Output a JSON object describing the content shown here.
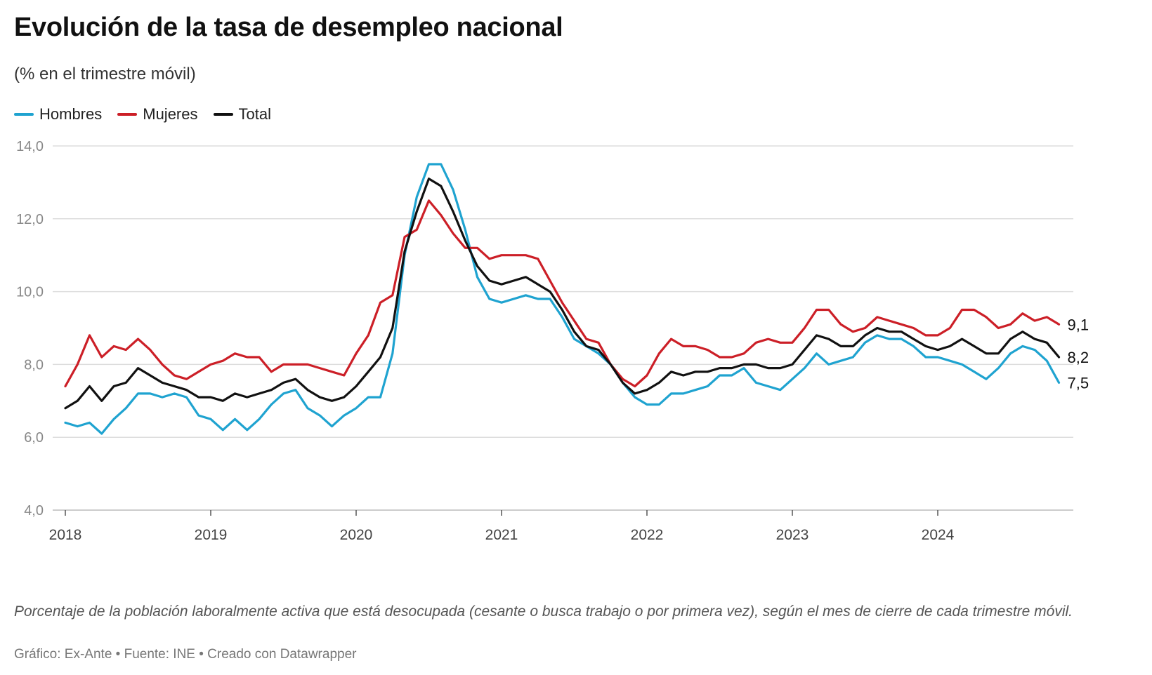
{
  "title": "Evolución de la tasa de desempleo nacional",
  "subtitle": "(% en el trimestre móvil)",
  "note": "Porcentaje de la población laboralmente activa que está desocupada (cesante o busca trabajo o por primera vez), según el mes de cierre de cada trimestre móvil.",
  "footer": "Gráfico: Ex-Ante • Fuente: INE • Creado con Datawrapper",
  "chart_data": {
    "type": "line",
    "x_start": "2018-01",
    "x_frequency": "monthly",
    "x_ticks": [
      "2018",
      "2019",
      "2020",
      "2021",
      "2022",
      "2023",
      "2024"
    ],
    "y_ticks": [
      "4,0",
      "6,0",
      "8,0",
      "10,0",
      "12,0",
      "14,0"
    ],
    "ylim": [
      4,
      14
    ],
    "grid": true,
    "legend_position": "top-left",
    "series": [
      {
        "name": "Hombres",
        "color": "#1fa3d0",
        "end_label": "7,5",
        "values": [
          6.4,
          6.3,
          6.4,
          6.1,
          6.5,
          6.8,
          7.2,
          7.2,
          7.1,
          7.2,
          7.1,
          6.6,
          6.5,
          6.2,
          6.5,
          6.2,
          6.5,
          6.9,
          7.2,
          7.3,
          6.8,
          6.6,
          6.3,
          6.6,
          6.8,
          7.1,
          7.1,
          8.3,
          11.0,
          12.6,
          13.5,
          13.5,
          12.8,
          11.7,
          10.4,
          9.8,
          9.7,
          9.8,
          9.9,
          9.8,
          9.8,
          9.3,
          8.7,
          8.5,
          8.3,
          8.0,
          7.5,
          7.1,
          6.9,
          6.9,
          7.2,
          7.2,
          7.3,
          7.4,
          7.7,
          7.7,
          7.9,
          7.5,
          7.4,
          7.3,
          7.6,
          7.9,
          8.3,
          8.0,
          8.1,
          8.2,
          8.6,
          8.8,
          8.7,
          8.7,
          8.5,
          8.2,
          8.2,
          8.1,
          8.0,
          7.8,
          7.6,
          7.9,
          8.3,
          8.5,
          8.4,
          8.1,
          7.5
        ]
      },
      {
        "name": "Mujeres",
        "color": "#cc1f27",
        "end_label": "9,1",
        "values": [
          7.4,
          8.0,
          8.8,
          8.2,
          8.5,
          8.4,
          8.7,
          8.4,
          8.0,
          7.7,
          7.6,
          7.8,
          8.0,
          8.1,
          8.3,
          8.2,
          8.2,
          7.8,
          8.0,
          8.0,
          8.0,
          7.9,
          7.8,
          7.7,
          8.3,
          8.8,
          9.7,
          9.9,
          11.5,
          11.7,
          12.5,
          12.1,
          11.6,
          11.2,
          11.2,
          10.9,
          11.0,
          11.0,
          11.0,
          10.9,
          10.3,
          9.7,
          9.2,
          8.7,
          8.6,
          8.0,
          7.6,
          7.4,
          7.7,
          8.3,
          8.7,
          8.5,
          8.5,
          8.4,
          8.2,
          8.2,
          8.3,
          8.6,
          8.7,
          8.6,
          8.6,
          9.0,
          9.5,
          9.5,
          9.1,
          8.9,
          9.0,
          9.3,
          9.2,
          9.1,
          9.0,
          8.8,
          8.8,
          9.0,
          9.5,
          9.5,
          9.3,
          9.0,
          9.1,
          9.4,
          9.2,
          9.3,
          9.1
        ]
      },
      {
        "name": "Total",
        "color": "#111111",
        "end_label": "8,2",
        "values": [
          6.8,
          7.0,
          7.4,
          7.0,
          7.4,
          7.5,
          7.9,
          7.7,
          7.5,
          7.4,
          7.3,
          7.1,
          7.1,
          7.0,
          7.2,
          7.1,
          7.2,
          7.3,
          7.5,
          7.6,
          7.3,
          7.1,
          7.0,
          7.1,
          7.4,
          7.8,
          8.2,
          9.0,
          11.1,
          12.2,
          13.1,
          12.9,
          12.2,
          11.4,
          10.7,
          10.3,
          10.2,
          10.3,
          10.4,
          10.2,
          10.0,
          9.5,
          8.9,
          8.5,
          8.4,
          8.0,
          7.5,
          7.2,
          7.3,
          7.5,
          7.8,
          7.7,
          7.8,
          7.8,
          7.9,
          7.9,
          8.0,
          8.0,
          7.9,
          7.9,
          8.0,
          8.4,
          8.8,
          8.7,
          8.5,
          8.5,
          8.8,
          9.0,
          8.9,
          8.9,
          8.7,
          8.5,
          8.4,
          8.5,
          8.7,
          8.5,
          8.3,
          8.3,
          8.7,
          8.9,
          8.7,
          8.6,
          8.2
        ]
      }
    ]
  }
}
